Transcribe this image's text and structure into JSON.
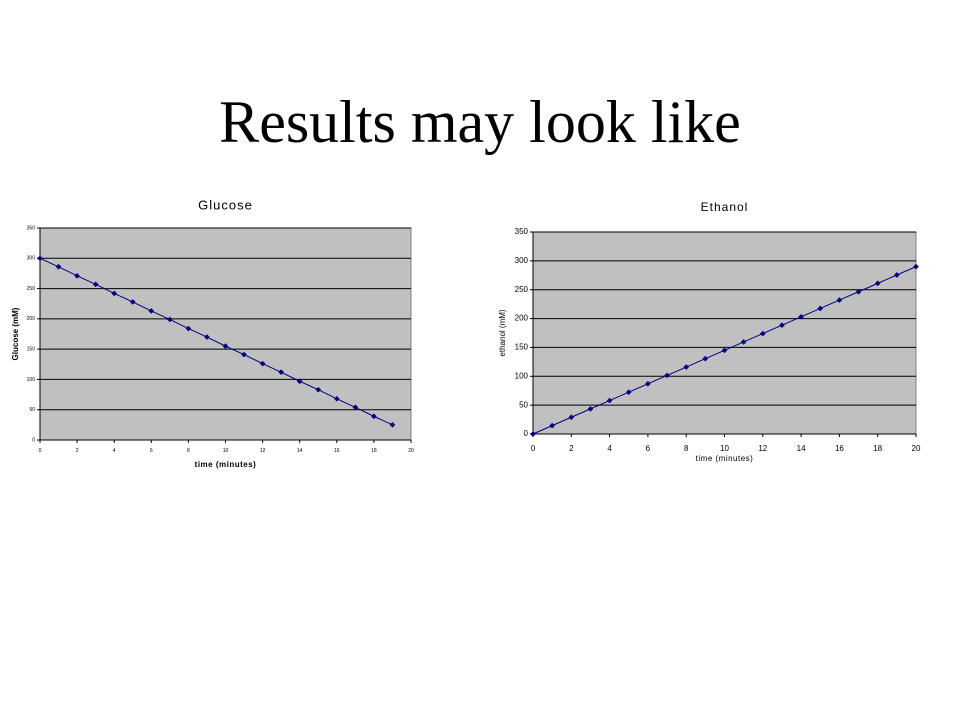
{
  "title": "Results may look like",
  "chart_data": [
    {
      "type": "line",
      "title": "Glucose",
      "xlabel": "time (minutes)",
      "ylabel": "Glucose (mM)",
      "x": [
        0,
        1,
        2,
        3,
        4,
        5,
        6,
        7,
        8,
        9,
        10,
        11,
        12,
        13,
        14,
        15,
        16,
        17,
        18,
        19
      ],
      "values": [
        300,
        286,
        271,
        257,
        242,
        228,
        213,
        199,
        184,
        170,
        155,
        141,
        126,
        112,
        97,
        83,
        68,
        54,
        39,
        25
      ],
      "color": "#000080",
      "xlim": [
        0,
        20
      ],
      "xticks": [
        0,
        2,
        4,
        6,
        8,
        10,
        12,
        14,
        16,
        18,
        20
      ],
      "ylim": [
        0,
        350
      ],
      "yticks": [
        0,
        50,
        100,
        150,
        200,
        250,
        300,
        350
      ],
      "grid": true
    },
    {
      "type": "line",
      "title": "Ethanol",
      "xlabel": "time (minutes)",
      "ylabel": "ethanol (mM)",
      "x": [
        0,
        1,
        2,
        3,
        4,
        5,
        6,
        7,
        8,
        9,
        10,
        11,
        12,
        13,
        14,
        15,
        16,
        17,
        18,
        19,
        20
      ],
      "values": [
        0,
        14.5,
        29,
        43.5,
        58,
        72.5,
        87,
        101.5,
        116,
        130.5,
        145,
        159.5,
        174,
        188.5,
        203,
        217.5,
        232,
        246.5,
        261,
        275.5,
        290
      ],
      "color": "#000080",
      "xlim": [
        0,
        20
      ],
      "xticks": [
        0,
        2,
        4,
        6,
        8,
        10,
        12,
        14,
        16,
        18,
        20
      ],
      "ylim": [
        0,
        350
      ],
      "yticks": [
        0,
        50,
        100,
        150,
        200,
        250,
        300,
        350
      ],
      "grid": true
    }
  ]
}
